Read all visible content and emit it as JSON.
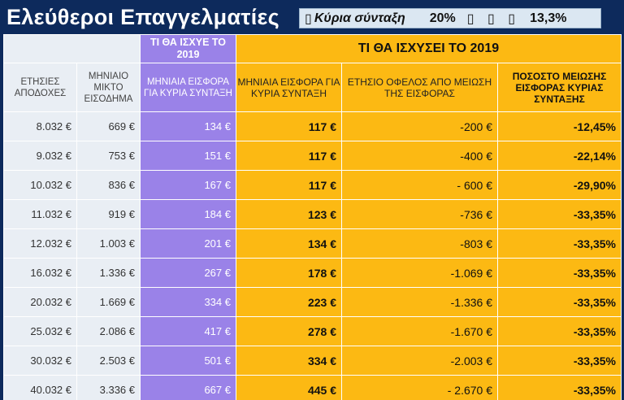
{
  "header": {
    "title": "Ελεύθεροι Επαγγελματίες",
    "info": {
      "square_glyph": "▯",
      "label": "Κύρια σύνταξη",
      "value1": "20%",
      "boxes": "▯ ▯ ▯",
      "value2": "13,3%"
    }
  },
  "table": {
    "top_headers": {
      "before_2019": "ΤΙ ΘΑ ΙΣΧΥΕ ΤΟ 2019",
      "from_2019": "ΤΙ ΘΑ ΙΣΧΥΣΕΙ ΤΟ 2019"
    },
    "columns": [
      "ΕΤΗΣΙΕΣ ΑΠΟΔΟΧΕΣ",
      "ΜΗΝΙΑΙΟ ΜΙΚΤΟ ΕΙΣΟΔΗΜΑ",
      "ΜΗΝΙΑΙΑ ΕΙΣΦΟΡΑ ΓΙΑ ΚΥΡΙΑ ΣΥΝΤΑΞΗ",
      "ΜΗΝΙΑΙΑ ΕΙΣΦΟΡΑ ΓΙΑ ΚΥΡΙΑ ΣΥΝΤΑΞΗ",
      "ΕΤΗΣΙΟ ΟΦΕΛΟΣ ΑΠΟ ΜΕΙΩΣΗ ΤΗΣ ΕΙΣΦΟΡΑΣ",
      "ΠΟΣΟΣΤΟ ΜΕΙΩΣΗΣ ΕΙΣΦΟΡΑΣ ΚΥΡΙΑΣ ΣΥΝΤΑΞΗΣ"
    ],
    "rows": [
      {
        "annual": "8.032 €",
        "monthly_income": "669 €",
        "old": "134 €",
        "new": "117 €",
        "benefit": "-200 €",
        "pct": "-12,45%"
      },
      {
        "annual": "9.032 €",
        "monthly_income": "753 €",
        "old": "151 €",
        "new": "117 €",
        "benefit": "-400 €",
        "pct": "-22,14%"
      },
      {
        "annual": "10.032 €",
        "monthly_income": "836 €",
        "old": "167 €",
        "new": "117 €",
        "benefit": "- 600 €",
        "pct": "-29,90%"
      },
      {
        "annual": "11.032 €",
        "monthly_income": "919 €",
        "old": "184 €",
        "new": "123 €",
        "benefit": "-736 €",
        "pct": "-33,35%"
      },
      {
        "annual": "12.032 €",
        "monthly_income": "1.003 €",
        "old": "201 €",
        "new": "134 €",
        "benefit": "-803 €",
        "pct": "-33,35%"
      },
      {
        "annual": "16.032 €",
        "monthly_income": "1.336 €",
        "old": "267 €",
        "new": "178 €",
        "benefit": "-1.069 €",
        "pct": "-33,35%"
      },
      {
        "annual": "20.032 €",
        "monthly_income": "1.669 €",
        "old": "334 €",
        "new": "223 €",
        "benefit": "-1.336 €",
        "pct": "-33,35%"
      },
      {
        "annual": "25.032 €",
        "monthly_income": "2.086 €",
        "old": "417 €",
        "new": "278 €",
        "benefit": "-1.670 €",
        "pct": "-33,35%"
      },
      {
        "annual": "30.032 €",
        "monthly_income": "2.503 €",
        "old": "501 €",
        "new": "334 €",
        "benefit": "-2.003 €",
        "pct": "-33,35%"
      },
      {
        "annual": "40.032 €",
        "monthly_income": "3.336 €",
        "old": "667 €",
        "new": "445 €",
        "benefit": "- 2.670 €",
        "pct": "-33,35%"
      }
    ]
  },
  "colors": {
    "background": "#0d2a5c",
    "purple": "#9a82e8",
    "orange": "#fcb913",
    "light": "#e9eef4"
  }
}
